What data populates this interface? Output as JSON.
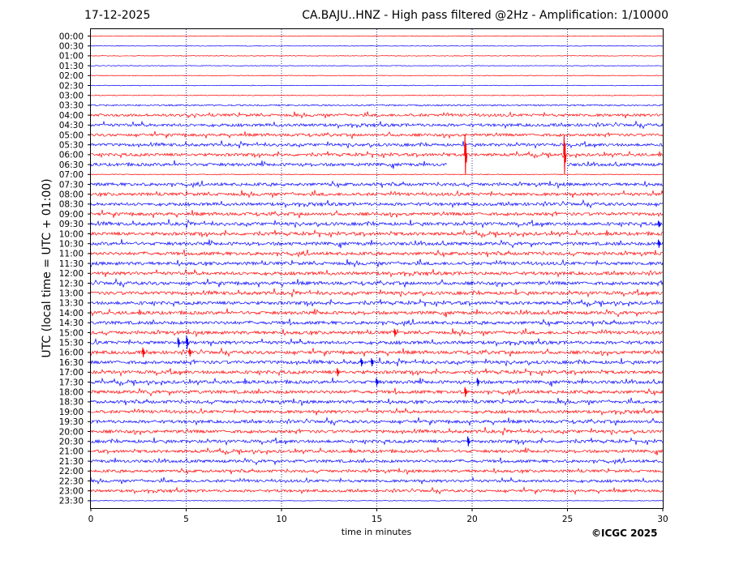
{
  "header": {
    "date": "17-12-2025",
    "title": "CA.BAJU..HNZ - High pass filtered @2Hz - Amplification: 1/10000"
  },
  "footer": {
    "copyright": "©ICGC 2025"
  },
  "colors": {
    "trace_red": "#ff0000",
    "trace_blue": "#0000ff",
    "gridline": "#000080"
  },
  "chart_data": {
    "type": "line",
    "title": "CA.BAJU..HNZ - High pass filtered @2Hz - Amplification: 1/10000",
    "xlabel": "time in minutes",
    "ylabel": "UTC (local time = UTC + 01:00)",
    "xlim": [
      0,
      30
    ],
    "x_ticks": [
      "0",
      "5",
      "10",
      "15",
      "20",
      "25",
      "30"
    ],
    "vertical_gridlines_at": [
      5,
      10,
      15,
      20,
      25
    ],
    "row_labels": [
      "00:00",
      "00:30",
      "01:00",
      "01:30",
      "02:00",
      "02:30",
      "03:00",
      "03:30",
      "04:00",
      "04:30",
      "05:00",
      "05:30",
      "06:00",
      "06:30",
      "07:00",
      "07:30",
      "08:00",
      "08:30",
      "09:00",
      "09:30",
      "10:00",
      "10:30",
      "11:00",
      "11:30",
      "12:00",
      "12:30",
      "13:00",
      "13:30",
      "14:00",
      "14:30",
      "15:00",
      "15:30",
      "16:00",
      "16:30",
      "17:00",
      "17:30",
      "18:00",
      "18:30",
      "19:00",
      "19:30",
      "20:00",
      "20:30",
      "21:00",
      "21:30",
      "22:00",
      "22:30",
      "23:00",
      "23:30"
    ],
    "trace_rows_recorded": 48,
    "color_cycle": [
      "red",
      "blue"
    ],
    "noise_level": [
      0.4,
      0.4,
      0.4,
      0.4,
      0.4,
      0.4,
      0.5,
      0.9,
      1.6,
      1.7,
      1.6,
      1.7,
      1.7,
      1.8,
      0.5,
      1.8,
      1.8,
      1.8,
      1.8,
      1.9,
      1.9,
      1.9,
      1.9,
      1.9,
      1.9,
      1.9,
      1.9,
      1.9,
      1.9,
      1.9,
      1.9,
      1.9,
      1.9,
      1.9,
      1.9,
      1.9,
      1.9,
      1.8,
      1.8,
      1.8,
      1.8,
      1.8,
      1.7,
      1.7,
      1.6,
      1.6,
      1.5,
      0.4
    ],
    "data_gap": {
      "row_label": "06:30",
      "from_minute": 18.7,
      "to_minute": 25.0
    },
    "spikes": [
      {
        "row_label": "06:00",
        "minute": 19.65,
        "amplitude": 24
      },
      {
        "row_label": "06:00",
        "minute": 24.85,
        "amplitude": 24
      },
      {
        "row_label": "15:30",
        "minute": 4.6,
        "amplitude": 6
      },
      {
        "row_label": "15:30",
        "minute": 5.05,
        "amplitude": 8
      },
      {
        "row_label": "16:00",
        "minute": 2.75,
        "amplitude": 6
      },
      {
        "row_label": "16:00",
        "minute": 5.2,
        "amplitude": 5
      },
      {
        "row_label": "16:30",
        "minute": 14.2,
        "amplitude": 5
      },
      {
        "row_label": "16:30",
        "minute": 14.75,
        "amplitude": 5
      },
      {
        "row_label": "15:00",
        "minute": 15.95,
        "amplitude": 5
      },
      {
        "row_label": "17:00",
        "minute": 12.95,
        "amplitude": 5
      },
      {
        "row_label": "17:30",
        "minute": 15.0,
        "amplitude": 5
      },
      {
        "row_label": "17:30",
        "minute": 20.3,
        "amplitude": 5
      },
      {
        "row_label": "18:00",
        "minute": 19.65,
        "amplitude": 6
      },
      {
        "row_label": "20:30",
        "minute": 19.8,
        "amplitude": 6
      },
      {
        "row_label": "09:30",
        "minute": 29.8,
        "amplitude": 4
      },
      {
        "row_label": "10:30",
        "minute": 29.8,
        "amplitude": 5
      }
    ]
  }
}
